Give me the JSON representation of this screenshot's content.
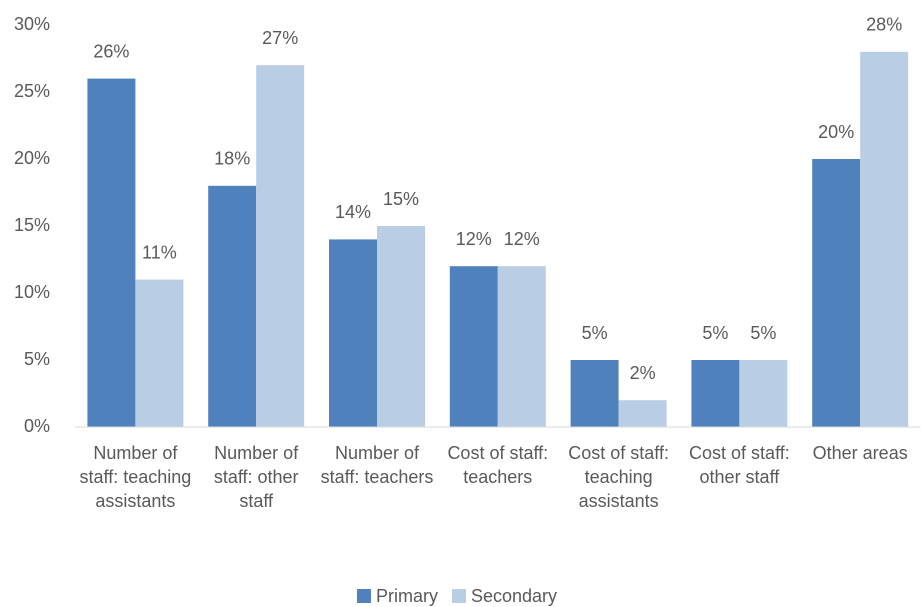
{
  "chart_data": {
    "type": "bar",
    "categories": [
      "Number of staff: teaching assistants",
      "Number of staff: other staff",
      "Number of staff: teachers",
      "Cost of staff: teachers",
      "Cost of staff: teaching assistants",
      "Cost of staff: other staff",
      "Other areas"
    ],
    "series": [
      {
        "name": "Primary",
        "color": "#4f81bd",
        "values": [
          26,
          18,
          14,
          12,
          5,
          5,
          20
        ],
        "value_labels": [
          "26%",
          "18%",
          "14%",
          "12%",
          "5%",
          "5%",
          "20%"
        ]
      },
      {
        "name": "Secondary",
        "color": "#b9cde5",
        "values": [
          11,
          27,
          15,
          12,
          2,
          5,
          28
        ],
        "value_labels": [
          "11%",
          "27%",
          "15%",
          "12%",
          "2%",
          "5%",
          "28%"
        ]
      }
    ],
    "ylim": [
      0,
      30
    ],
    "yticks": [
      {
        "value": 0,
        "label": "0%"
      },
      {
        "value": 5,
        "label": "5%"
      },
      {
        "value": 10,
        "label": "10%"
      },
      {
        "value": 15,
        "label": "15%"
      },
      {
        "value": 20,
        "label": "20%"
      },
      {
        "value": 25,
        "label": "25%"
      },
      {
        "value": 30,
        "label": "30%"
      }
    ],
    "grid": false,
    "legend": "bottom"
  }
}
